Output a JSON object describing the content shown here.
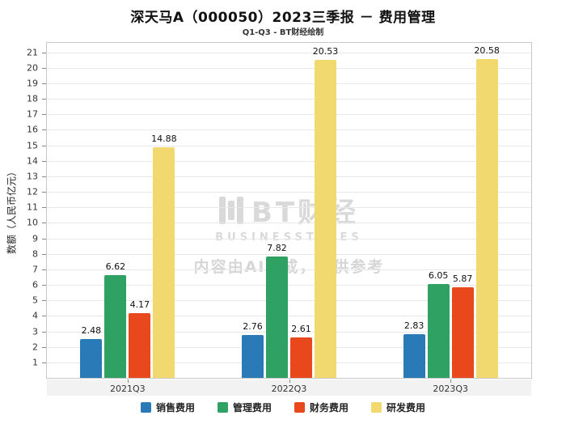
{
  "title": "深天马A（000050）2023三季报 － 费用管理",
  "subtitle": "Q1-Q3 - BT财经绘制",
  "watermark": {
    "logo_text": "BT财经",
    "logo_sub": "BUSINESSTIMES",
    "disclaimer": "内容由AI生成，仅供参考"
  },
  "chart_data": {
    "type": "bar",
    "title": "深天马A（000050）2023三季报 － 费用管理",
    "subtitle": "Q1-Q3 - BT财经绘制",
    "categories": [
      "2021Q3",
      "2022Q3",
      "2023Q3"
    ],
    "series": [
      {
        "name": "销售费用",
        "color": "#2a7ab8",
        "values": [
          2.48,
          2.76,
          2.83
        ]
      },
      {
        "name": "管理费用",
        "color": "#2fa162",
        "values": [
          6.62,
          7.82,
          6.05
        ]
      },
      {
        "name": "财务费用",
        "color": "#e8481c",
        "values": [
          4.17,
          2.61,
          5.87
        ]
      },
      {
        "name": "研发费用",
        "color": "#f1d970",
        "values": [
          14.88,
          20.53,
          20.58
        ]
      }
    ],
    "xlabel": "",
    "ylabel": "数额（人民币亿元）",
    "ylim": [
      0,
      21.6
    ],
    "yticks": [
      1,
      2,
      3,
      4,
      5,
      6,
      7,
      8,
      9,
      10,
      11,
      12,
      13,
      14,
      15,
      16,
      17,
      18,
      19,
      20,
      21
    ],
    "grid": true,
    "legend_position": "bottom"
  }
}
